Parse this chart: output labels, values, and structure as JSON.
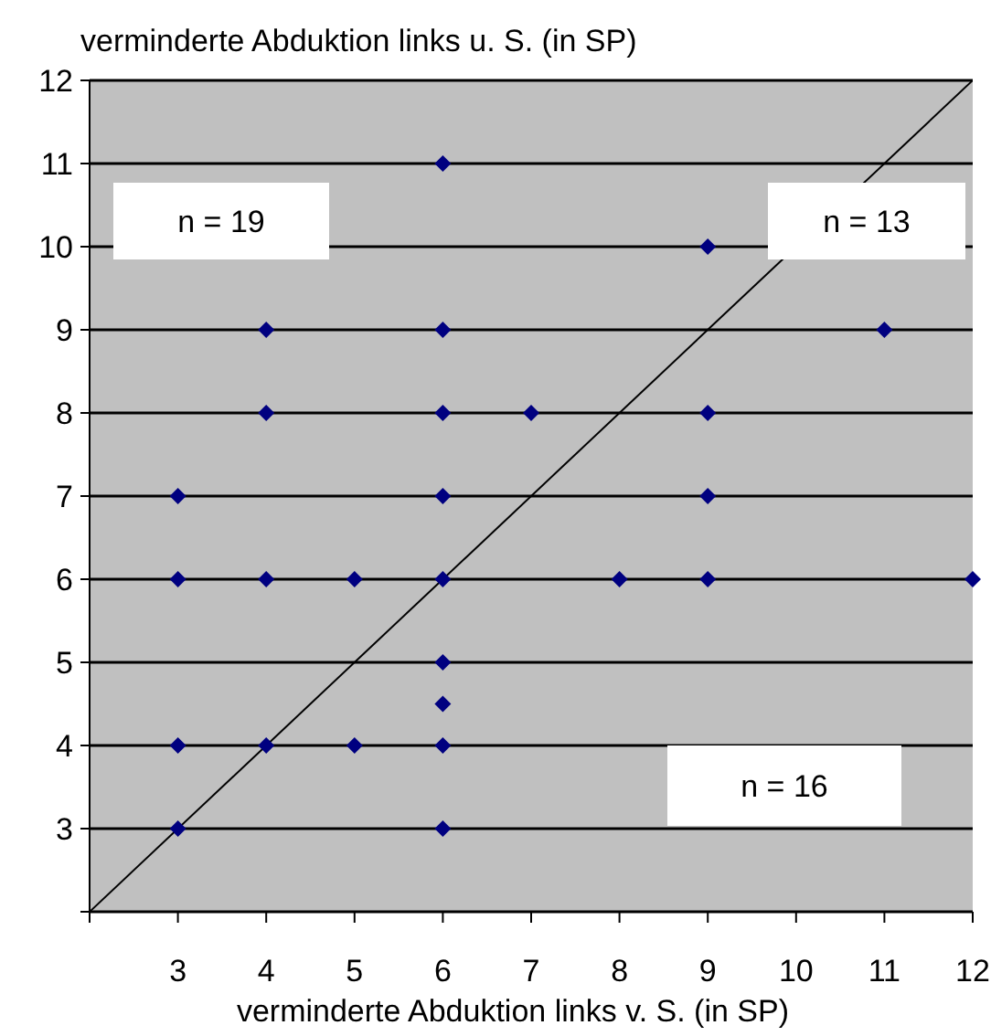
{
  "chart_data": {
    "type": "scatter",
    "ylabel": "verminderte Abduktion links u. S. (in SP)",
    "xlabel": "verminderte Abduktion links v. S. (in SP)",
    "xlim": [
      2,
      12
    ],
    "ylim": [
      2,
      12
    ],
    "xticks": [
      {
        "value": 2,
        "label": null
      },
      3,
      4,
      5,
      6,
      7,
      8,
      9,
      10,
      11,
      12
    ],
    "yticks": [
      {
        "value": 2,
        "label": null
      },
      3,
      4,
      5,
      6,
      7,
      8,
      9,
      10,
      11,
      12
    ],
    "grid": "y",
    "marker": "diamond",
    "series": [
      {
        "color": "#000080",
        "x": [
          6,
          9,
          4,
          6,
          11,
          4,
          6,
          7,
          9,
          3,
          6,
          9,
          3,
          4,
          5,
          6,
          8,
          9,
          12,
          6,
          6,
          3,
          4,
          5,
          6,
          3,
          6
        ],
        "values": [
          11,
          10,
          9,
          9,
          9,
          8,
          8,
          8,
          8,
          7,
          7,
          7,
          6,
          6,
          6,
          6,
          6,
          6,
          6,
          5,
          4.5,
          4,
          4,
          4,
          4,
          3,
          3
        ]
      },
      {
        "type": "line",
        "color": "#000000",
        "marker": "none",
        "x": [
          2,
          12
        ],
        "values": [
          2,
          12
        ]
      }
    ],
    "annotations": [
      "n = 19",
      "n = 13",
      "n = 16"
    ]
  }
}
